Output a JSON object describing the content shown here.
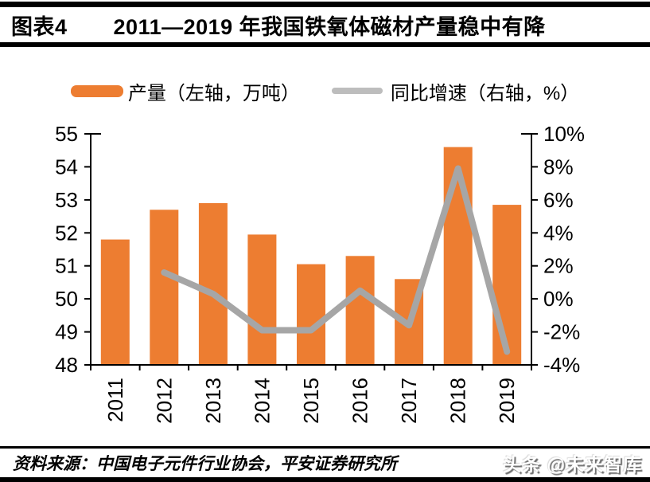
{
  "header": {
    "figure_label": "图表4",
    "title": "2011—2019 年我国铁氧体磁材产量稳中有降"
  },
  "colors": {
    "bar": "#ED7D31",
    "line": "#A6A6A6",
    "legend_line_swatch": "#BDBDBD",
    "axis": "#000000"
  },
  "chart_data": {
    "type": "bar",
    "subtype": "bar+line combo",
    "categories": [
      "2011",
      "2012",
      "2013",
      "2014",
      "2015",
      "2016",
      "2017",
      "2018",
      "2019"
    ],
    "series": [
      {
        "name": "产量（左轴，万吨）",
        "type": "bar",
        "axis": "left",
        "color": "#ED7D31",
        "values": [
          51.8,
          52.7,
          52.9,
          51.95,
          51.05,
          51.3,
          50.6,
          54.6,
          52.85
        ]
      },
      {
        "name": "同比增速（右轴，%）",
        "type": "line",
        "axis": "right",
        "color": "#A6A6A6",
        "values": [
          null,
          1.6,
          0.3,
          -1.9,
          -1.9,
          0.5,
          -1.6,
          7.9,
          -3.2
        ]
      }
    ],
    "left_axis": {
      "min": 48,
      "max": 55,
      "step": 1,
      "tick_labels": [
        "55",
        "54",
        "53",
        "52",
        "51",
        "50",
        "49",
        "48"
      ]
    },
    "right_axis": {
      "min": -4,
      "max": 10,
      "step": 2,
      "tick_labels": [
        "10%",
        "8%",
        "6%",
        "4%",
        "2%",
        "0%",
        "-2%",
        "-4%"
      ]
    },
    "grid": false,
    "legend_position": "top"
  },
  "footer": {
    "source": "资料来源：中国电子元件行业协会，平安证券研究所",
    "watermark": "头条 @未来智库"
  }
}
